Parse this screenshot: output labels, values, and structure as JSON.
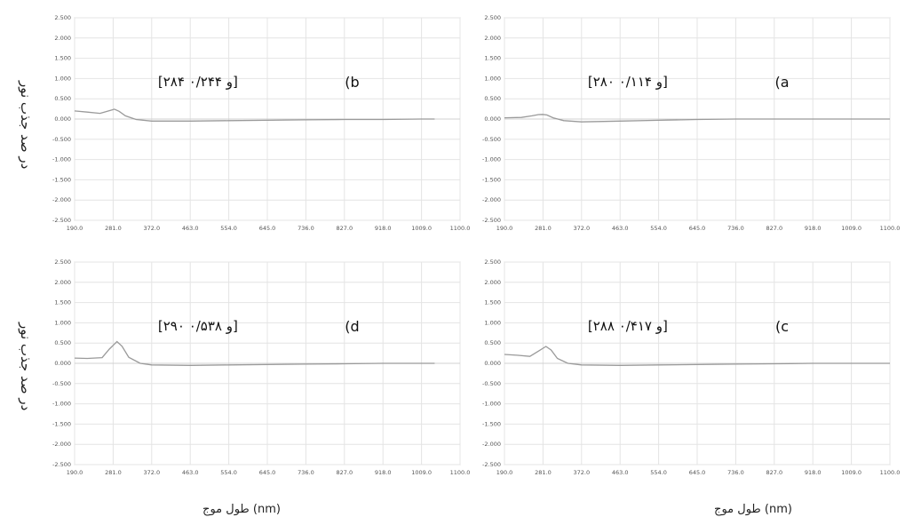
{
  "axis_titles": {
    "ylabel": "در صد جذب نور",
    "xlabel": "طول موج (nm)"
  },
  "chart_data": [
    {
      "type": "line",
      "panel_label": "(a",
      "annotation": "[۲۸۰ و ۰/۱۱۴]",
      "xlim": [
        190.0,
        1100.0
      ],
      "ylim": [
        -2.5,
        2.5
      ],
      "x_ticks": [
        "190.0",
        "281.0",
        "372.0",
        "463.0",
        "554.0",
        "645.0",
        "736.0",
        "827.0",
        "918.0",
        "1009.0",
        "1100.0"
      ],
      "y_ticks": [
        "2.500",
        "2.000",
        "1.500",
        "1.000",
        "0.500",
        "0.000",
        "-0.500",
        "-1.000",
        "-1.500",
        "-2.000",
        "-2.500"
      ],
      "grid": true,
      "series": [
        {
          "color": "#9a9a9a",
          "x": [
            190,
            230,
            255,
            270,
            280,
            290,
            305,
            330,
            372,
            463,
            554,
            645,
            736,
            827,
            918,
            1009,
            1100
          ],
          "y": [
            0.03,
            0.04,
            0.08,
            0.11,
            0.114,
            0.1,
            0.03,
            -0.04,
            -0.07,
            -0.05,
            -0.03,
            -0.01,
            0.0,
            0.0,
            0.0,
            0.0,
            0.0
          ]
        }
      ]
    },
    {
      "type": "line",
      "panel_label": "(b",
      "annotation": "[۲۸۴ و ۰/۲۴۴]",
      "xlim": [
        190.0,
        1100.0
      ],
      "ylim": [
        -2.5,
        2.5
      ],
      "x_ticks": [
        "190.0",
        "281.0",
        "372.0",
        "463.0",
        "554.0",
        "645.0",
        "736.0",
        "827.0",
        "918.0",
        "1009.0",
        "1100.0"
      ],
      "y_ticks": [
        "2.500",
        "2.000",
        "1.500",
        "1.000",
        "0.500",
        "0.000",
        "-0.500",
        "-1.000",
        "-1.500",
        "-2.000",
        "-2.500"
      ],
      "grid": true,
      "series": [
        {
          "color": "#9a9a9a",
          "x": [
            190,
            220,
            250,
            270,
            284,
            295,
            310,
            335,
            372,
            463,
            554,
            645,
            736,
            827,
            918,
            1009,
            1040
          ],
          "y": [
            0.2,
            0.17,
            0.14,
            0.2,
            0.244,
            0.19,
            0.08,
            -0.01,
            -0.05,
            -0.05,
            -0.04,
            -0.03,
            -0.02,
            -0.01,
            -0.01,
            0.0,
            0.0
          ]
        }
      ]
    },
    {
      "type": "line",
      "panel_label": "(c",
      "annotation": "[۲۸۸ و ۰/۴۱۷]",
      "xlim": [
        190.0,
        1100.0
      ],
      "ylim": [
        -2.5,
        2.5
      ],
      "x_ticks": [
        "190.0",
        "281.0",
        "372.0",
        "463.0",
        "554.0",
        "645.0",
        "736.0",
        "827.0",
        "918.0",
        "1009.0",
        "1100.0"
      ],
      "y_ticks": [
        "2.500",
        "2.000",
        "1.500",
        "1.000",
        "0.500",
        "0.000",
        "-0.500",
        "-1.000",
        "-1.500",
        "-2.000",
        "-2.500"
      ],
      "grid": true,
      "series": [
        {
          "color": "#9a9a9a",
          "x": [
            190,
            220,
            250,
            270,
            288,
            300,
            315,
            340,
            372,
            463,
            554,
            645,
            736,
            827,
            918,
            1009,
            1100
          ],
          "y": [
            0.22,
            0.2,
            0.17,
            0.3,
            0.417,
            0.33,
            0.12,
            0.0,
            -0.04,
            -0.05,
            -0.04,
            -0.03,
            -0.02,
            -0.01,
            0.0,
            0.0,
            0.0
          ]
        }
      ]
    },
    {
      "type": "line",
      "panel_label": "(d",
      "annotation": "[۲۹۰ و ۰/۵۳۸]",
      "xlim": [
        190.0,
        1100.0
      ],
      "ylim": [
        -2.5,
        2.5
      ],
      "x_ticks": [
        "190.0",
        "281.0",
        "372.0",
        "463.0",
        "554.0",
        "645.0",
        "736.0",
        "827.0",
        "918.0",
        "1009.0",
        "1100.0"
      ],
      "y_ticks": [
        "2.500",
        "2.000",
        "1.500",
        "1.000",
        "0.500",
        "0.000",
        "-0.500",
        "-1.000",
        "-1.500",
        "-2.000",
        "-2.500"
      ],
      "grid": true,
      "series": [
        {
          "color": "#9a9a9a",
          "x": [
            190,
            220,
            255,
            272,
            290,
            302,
            318,
            345,
            372,
            463,
            554,
            645,
            736,
            827,
            918,
            1009,
            1040
          ],
          "y": [
            0.13,
            0.12,
            0.14,
            0.35,
            0.538,
            0.42,
            0.15,
            0.0,
            -0.04,
            -0.05,
            -0.04,
            -0.03,
            -0.02,
            -0.01,
            0.0,
            0.0,
            0.0
          ]
        }
      ]
    }
  ]
}
